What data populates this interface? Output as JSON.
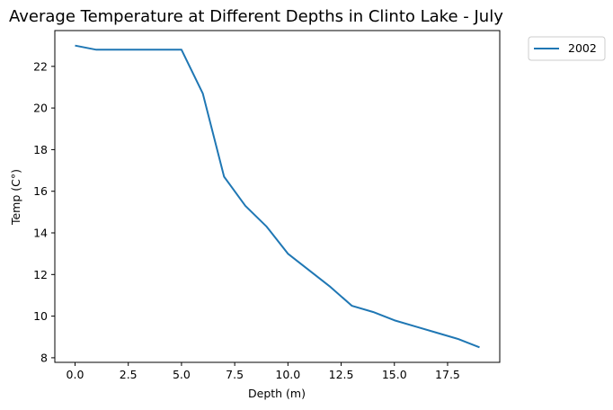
{
  "chart_data": {
    "type": "line",
    "title": "Average Temperature at Different Depths in Clinto Lake - July",
    "xlabel": "Depth (m)",
    "ylabel": "Temp (C°)",
    "xlim": [
      -0.95,
      19.95
    ],
    "ylim": [
      7.78,
      23.72
    ],
    "xticks": [
      0.0,
      2.5,
      5.0,
      7.5,
      10.0,
      12.5,
      15.0,
      17.5
    ],
    "xtick_labels": [
      "0.0",
      "2.5",
      "5.0",
      "7.5",
      "10.0",
      "12.5",
      "15.0",
      "17.5"
    ],
    "yticks": [
      8,
      10,
      12,
      14,
      16,
      18,
      20,
      22
    ],
    "ytick_labels": [
      "8",
      "10",
      "12",
      "14",
      "16",
      "18",
      "20",
      "22"
    ],
    "grid": false,
    "legend_position": "outside-top-right",
    "series": [
      {
        "name": "2002",
        "color": "#1f77b4",
        "x": [
          0,
          1,
          2,
          3,
          4,
          5,
          6,
          7,
          8,
          9,
          10,
          11,
          12,
          13,
          14,
          15,
          16,
          17,
          18,
          19
        ],
        "y": [
          23.0,
          22.8,
          22.8,
          22.8,
          22.8,
          22.8,
          20.7,
          16.7,
          15.3,
          14.3,
          13.0,
          12.2,
          11.4,
          10.5,
          10.2,
          9.8,
          9.5,
          9.2,
          8.9,
          8.5
        ]
      }
    ]
  }
}
